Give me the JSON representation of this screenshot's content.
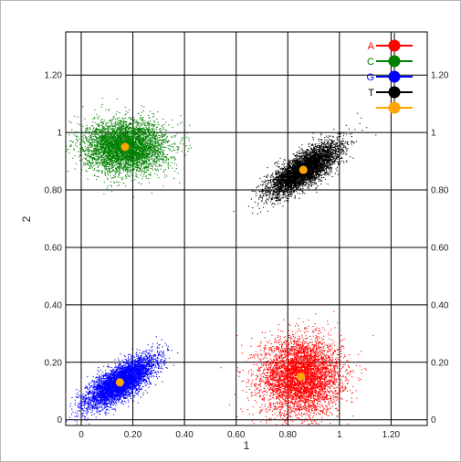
{
  "chart_data": {
    "type": "scatter",
    "title": "",
    "xlabel": "1",
    "ylabel": "2",
    "xlim": [
      -0.06,
      1.34
    ],
    "ylim": [
      -0.02,
      1.35
    ],
    "x_ticks": [
      {
        "value": 0,
        "label": "0"
      },
      {
        "value": 0.2,
        "label": "0.20"
      },
      {
        "value": 0.4,
        "label": "0.40"
      },
      {
        "value": 0.6,
        "label": "0.60"
      },
      {
        "value": 0.8,
        "label": "0.80"
      },
      {
        "value": 1.0,
        "label": "1"
      },
      {
        "value": 1.2,
        "label": "1.20"
      }
    ],
    "y_ticks": [
      {
        "value": 0,
        "label": "0"
      },
      {
        "value": 0.2,
        "label": "0.20"
      },
      {
        "value": 0.4,
        "label": "0.40"
      },
      {
        "value": 0.6,
        "label": "0.60"
      },
      {
        "value": 0.8,
        "label": "0.80"
      },
      {
        "value": 1.0,
        "label": "1"
      },
      {
        "value": 1.2,
        "label": "1.20"
      }
    ],
    "grid": true,
    "legend_position": "top-right",
    "series": [
      {
        "name": "A",
        "color": "#ff0000",
        "center": {
          "x": 0.85,
          "y": 0.15
        },
        "spread": [
          0.14,
          0.12
        ],
        "correlation": 0.0,
        "point_count": 5000
      },
      {
        "name": "C",
        "color": "#008000",
        "center": {
          "x": 0.17,
          "y": 0.95
        },
        "spread": [
          0.14,
          0.08
        ],
        "correlation": 0.0,
        "point_count": 5000
      },
      {
        "name": "G",
        "color": "#0000ff",
        "center": {
          "x": 0.15,
          "y": 0.13
        },
        "spread": [
          0.12,
          0.08
        ],
        "correlation": 0.75,
        "point_count": 5000
      },
      {
        "name": "T",
        "color": "#000000",
        "center": {
          "x": 0.86,
          "y": 0.87
        },
        "spread": [
          0.12,
          0.08
        ],
        "correlation": 0.75,
        "point_count": 5000
      },
      {
        "name": "",
        "color": "#ffa500",
        "center": null,
        "spread": null,
        "correlation": 0,
        "point_count": 0
      }
    ],
    "markers": [
      {
        "series": "A",
        "x": 0.85,
        "y": 0.15,
        "color": "#ffa500"
      },
      {
        "series": "C",
        "x": 0.17,
        "y": 0.95,
        "color": "#ffa500"
      },
      {
        "series": "G",
        "x": 0.15,
        "y": 0.13,
        "color": "#ffa500"
      },
      {
        "series": "T",
        "x": 0.86,
        "y": 0.87,
        "color": "#ffa500"
      }
    ]
  }
}
